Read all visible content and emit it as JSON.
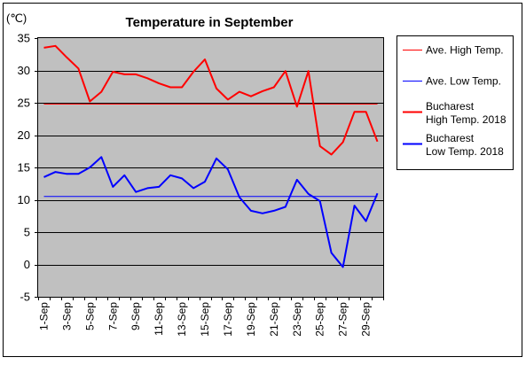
{
  "chart_data": {
    "type": "line",
    "title": "Temperature in September",
    "unit_label": "(℃)",
    "ylim": [
      -5,
      35
    ],
    "y_ticks": [
      35,
      30,
      25,
      20,
      15,
      10,
      5,
      0,
      -5
    ],
    "grid": "horizontal",
    "legend_position": "right",
    "categories": [
      "1-Sep",
      "2-Sep",
      "3-Sep",
      "4-Sep",
      "5-Sep",
      "6-Sep",
      "7-Sep",
      "8-Sep",
      "9-Sep",
      "10-Sep",
      "11-Sep",
      "12-Sep",
      "13-Sep",
      "14-Sep",
      "15-Sep",
      "16-Sep",
      "17-Sep",
      "18-Sep",
      "19-Sep",
      "20-Sep",
      "21-Sep",
      "22-Sep",
      "23-Sep",
      "24-Sep",
      "25-Sep",
      "26-Sep",
      "27-Sep",
      "28-Sep",
      "29-Sep",
      "30-Sep"
    ],
    "x_tick_labels": [
      "1-Sep",
      "3-Sep",
      "5-Sep",
      "7-Sep",
      "9-Sep",
      "11-Sep",
      "13-Sep",
      "15-Sep",
      "17-Sep",
      "19-Sep",
      "21-Sep",
      "23-Sep",
      "25-Sep",
      "27-Sep",
      "29-Sep"
    ],
    "series": [
      {
        "name": "Ave. High Temp.",
        "color": "#ff0000",
        "width": 1,
        "values": [
          24.8,
          24.8,
          24.8,
          24.8,
          24.8,
          24.8,
          24.8,
          24.8,
          24.8,
          24.8,
          24.8,
          24.8,
          24.8,
          24.8,
          24.8,
          24.8,
          24.8,
          24.8,
          24.8,
          24.8,
          24.8,
          24.8,
          24.8,
          24.8,
          24.8,
          24.8,
          24.8,
          24.8,
          24.8,
          24.8
        ]
      },
      {
        "name": "Ave. Low Temp.",
        "color": "#0000ff",
        "width": 1,
        "values": [
          10.5,
          10.5,
          10.5,
          10.5,
          10.5,
          10.5,
          10.5,
          10.5,
          10.5,
          10.5,
          10.5,
          10.5,
          10.5,
          10.5,
          10.5,
          10.5,
          10.5,
          10.5,
          10.5,
          10.5,
          10.5,
          10.5,
          10.5,
          10.5,
          10.5,
          10.5,
          10.5,
          10.5,
          10.5,
          10.5
        ]
      },
      {
        "name": "Bucharest High Temp. 2018",
        "legend_lines": [
          "Bucharest",
          "High Temp. 2018"
        ],
        "color": "#ff0000",
        "width": 2,
        "values": [
          33.5,
          33.8,
          32.0,
          30.3,
          25.2,
          26.7,
          29.8,
          29.4,
          29.4,
          28.8,
          28.0,
          27.4,
          27.4,
          29.8,
          31.7,
          27.2,
          25.5,
          26.7,
          26.0,
          26.8,
          27.4,
          29.9,
          24.4,
          29.9,
          18.3,
          17.0,
          18.9,
          23.6,
          23.6,
          19.0
        ]
      },
      {
        "name": "Bucharest Low Temp. 2018",
        "legend_lines": [
          "Bucharest",
          "Low Temp. 2018"
        ],
        "color": "#0000ff",
        "width": 2,
        "values": [
          13.5,
          14.3,
          14.0,
          14.0,
          15.0,
          16.6,
          12.0,
          13.8,
          11.2,
          11.8,
          12.0,
          13.8,
          13.3,
          11.8,
          12.8,
          16.4,
          14.7,
          10.4,
          8.3,
          7.9,
          8.3,
          8.9,
          13.1,
          10.9,
          9.8,
          1.8,
          -0.4,
          9.1,
          6.7,
          11.0
        ]
      }
    ]
  }
}
